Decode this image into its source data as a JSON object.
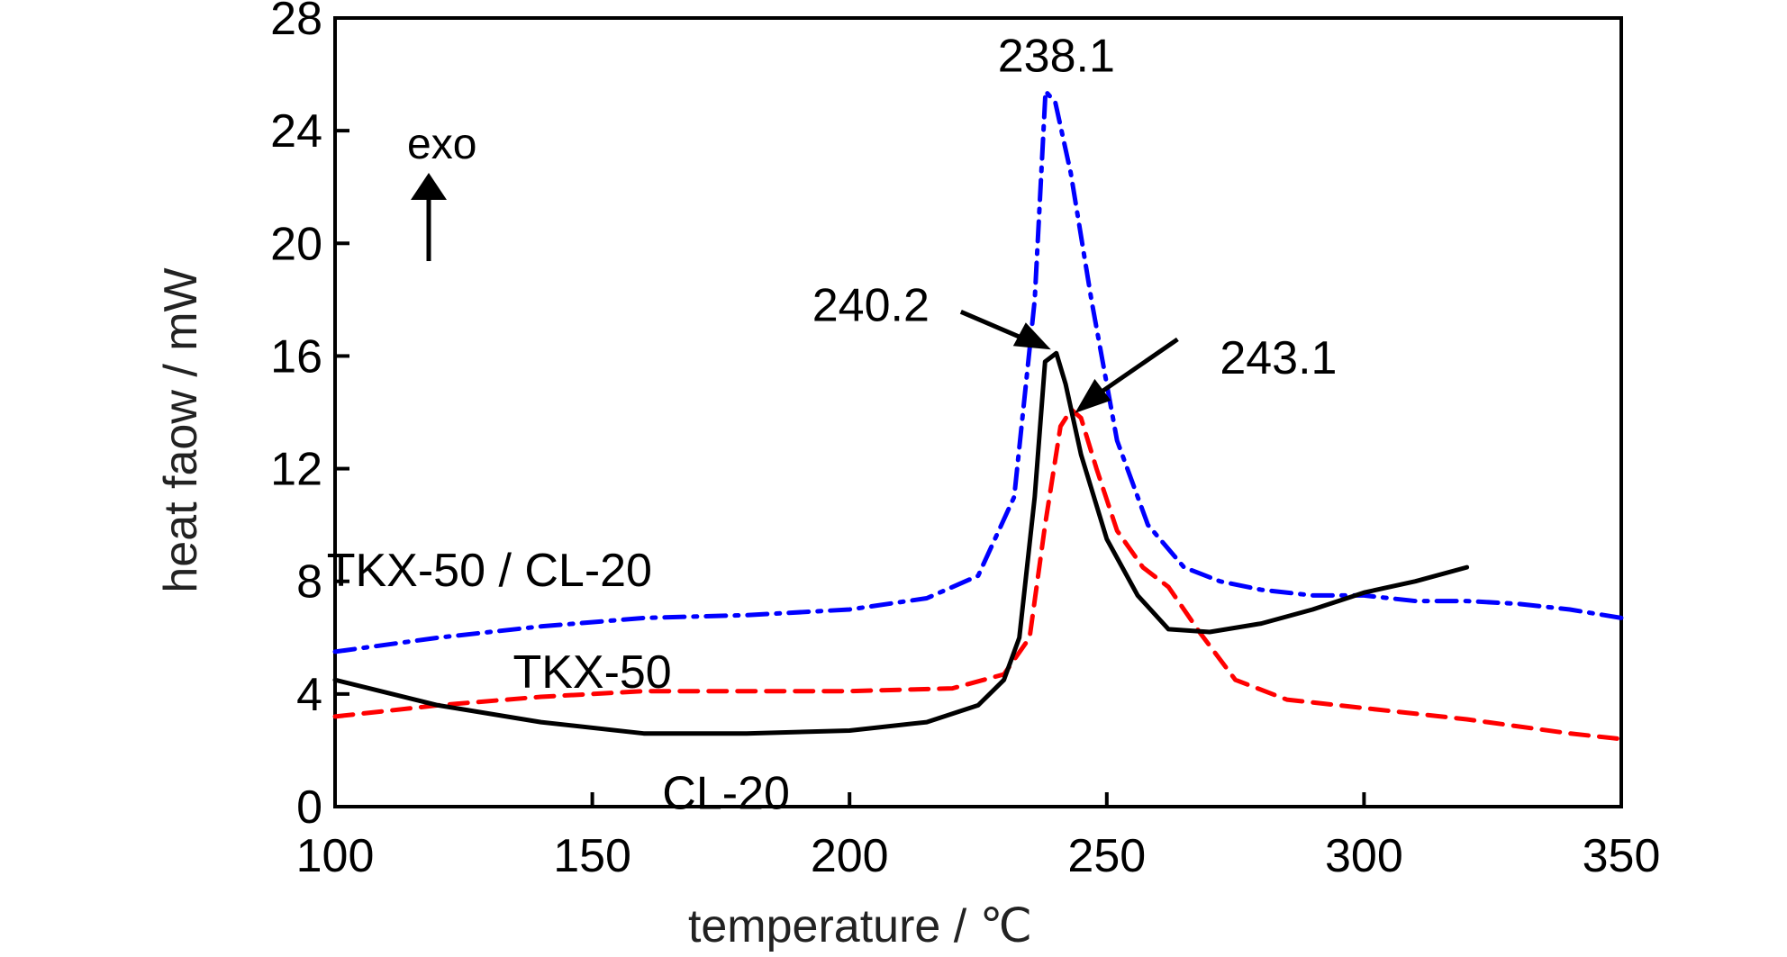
{
  "chart_data": {
    "type": "line",
    "title": "",
    "xlabel": "temperature / ℃",
    "ylabel": "heat faow / mW",
    "xlim": [
      100,
      350
    ],
    "ylim": [
      0,
      28
    ],
    "grid": false,
    "x_ticks": [
      100,
      150,
      200,
      250,
      300,
      350
    ],
    "x_tick_marks": [
      100,
      150,
      200,
      250,
      300,
      350
    ],
    "y_ticks": [
      0,
      4,
      8,
      12,
      16,
      20,
      24,
      28
    ],
    "exo_label": "exo",
    "series": [
      {
        "name": "TKX-50 / CL-20",
        "color": "#0000ff",
        "style": "dash-dot",
        "x": [
          100,
          120,
          140,
          160,
          180,
          200,
          215,
          225,
          232,
          236,
          238.1,
          240,
          243,
          247,
          252,
          258,
          265,
          272,
          280,
          290,
          300,
          310,
          320,
          330,
          340,
          350
        ],
        "y": [
          5.5,
          6.0,
          6.4,
          6.7,
          6.8,
          7.0,
          7.4,
          8.2,
          11.0,
          18.0,
          25.4,
          25.0,
          22.5,
          18.0,
          13.0,
          10.0,
          8.5,
          8.0,
          7.7,
          7.5,
          7.5,
          7.3,
          7.3,
          7.2,
          7.0,
          6.7
        ]
      },
      {
        "name": "TKX-50",
        "color": "#ff0000",
        "style": "dashed",
        "x": [
          100,
          120,
          140,
          160,
          180,
          200,
          220,
          230,
          235,
          238,
          241,
          243.1,
          245,
          248,
          252,
          257,
          262,
          268,
          275,
          285,
          300,
          320,
          340,
          350
        ],
        "y": [
          3.2,
          3.6,
          3.9,
          4.1,
          4.1,
          4.1,
          4.2,
          4.7,
          6.0,
          10.0,
          13.5,
          14.1,
          13.8,
          12.0,
          9.8,
          8.5,
          7.8,
          6.2,
          4.5,
          3.8,
          3.5,
          3.1,
          2.6,
          2.4
        ]
      },
      {
        "name": "CL-20",
        "color": "#000000",
        "style": "solid",
        "x": [
          100,
          120,
          140,
          160,
          180,
          200,
          215,
          225,
          230,
          233,
          236,
          238,
          240.2,
          242,
          245,
          250,
          256,
          262,
          270,
          280,
          290,
          300,
          310,
          320
        ],
        "y": [
          4.5,
          3.6,
          3.0,
          2.6,
          2.6,
          2.7,
          3.0,
          3.6,
          4.5,
          6.0,
          11.0,
          15.8,
          16.1,
          15.0,
          12.5,
          9.5,
          7.5,
          6.3,
          6.2,
          6.5,
          7.0,
          7.6,
          8.0,
          8.5
        ]
      }
    ],
    "series_labels": [
      {
        "text": "TKX-50 / CL-20",
        "x": 130,
        "y": 8.4
      },
      {
        "text": "TKX-50",
        "x": 150,
        "y": 4.8
      },
      {
        "text": "CL-20",
        "x": 176,
        "y": 0.5
      }
    ],
    "annotations": [
      {
        "text": "238.1",
        "x": 238.1,
        "y": 25.4
      },
      {
        "text": "240.2",
        "x": 240.2,
        "y": 16.1
      },
      {
        "text": "243.1",
        "x": 243.1,
        "y": 14.1
      }
    ]
  }
}
